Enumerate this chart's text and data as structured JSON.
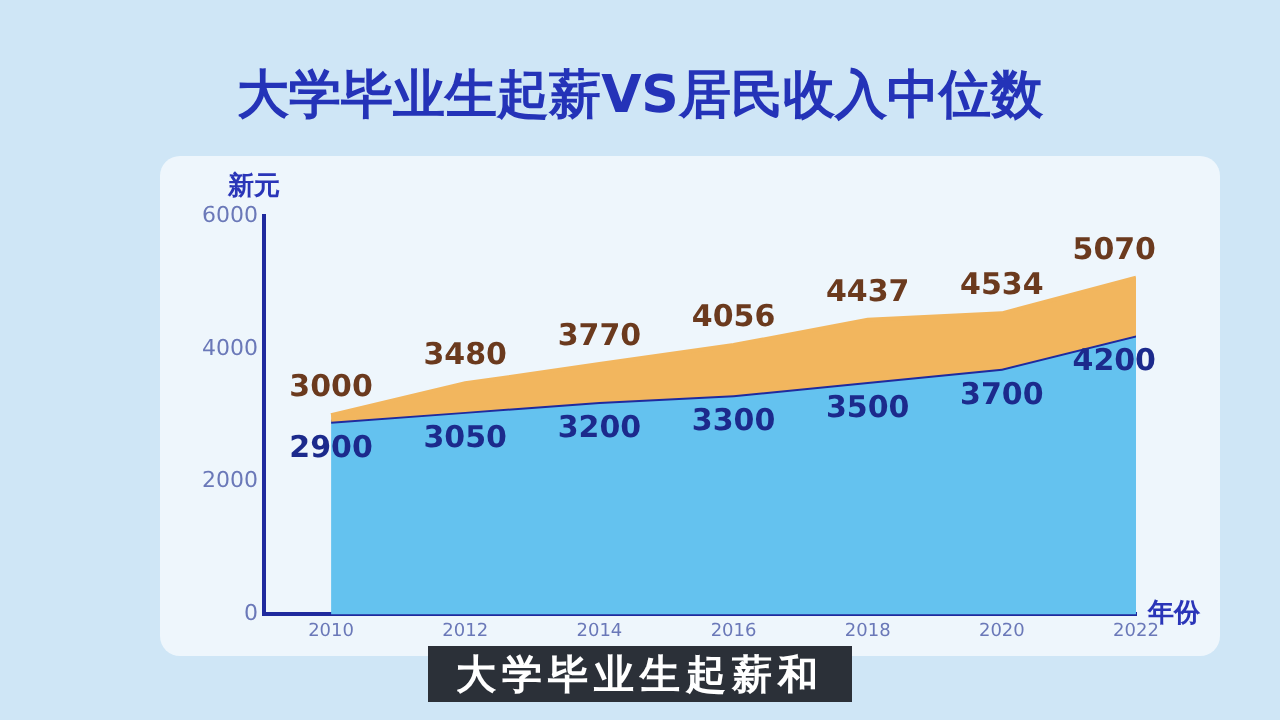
{
  "chart_data": {
    "type": "area",
    "title": "大学毕业生起薪VS居民收入中位数",
    "ylabel": "新元",
    "xlabel": "年份",
    "x": [
      2010,
      2012,
      2014,
      2016,
      2018,
      2020,
      2022
    ],
    "series": [
      {
        "color": "#f2b65e",
        "values": [
          3000,
          3480,
          3770,
          4056,
          4437,
          4534,
          5070
        ]
      },
      {
        "color": "#64c2ef",
        "values": [
          2900,
          3050,
          3200,
          3300,
          3500,
          3700,
          4200
        ]
      }
    ],
    "xlim": [
      2009,
      2022
    ],
    "xticks": [
      2010,
      2012,
      2014,
      2016,
      2018,
      2020,
      2022
    ],
    "ylim": [
      0,
      6000
    ],
    "yticks": [
      0,
      2000,
      4000,
      6000
    ],
    "data_labels": true,
    "grid": false,
    "legend": false,
    "marker": "none",
    "line_style": "solid",
    "annotations": [
      "大学毕业生起薪和"
    ]
  }
}
